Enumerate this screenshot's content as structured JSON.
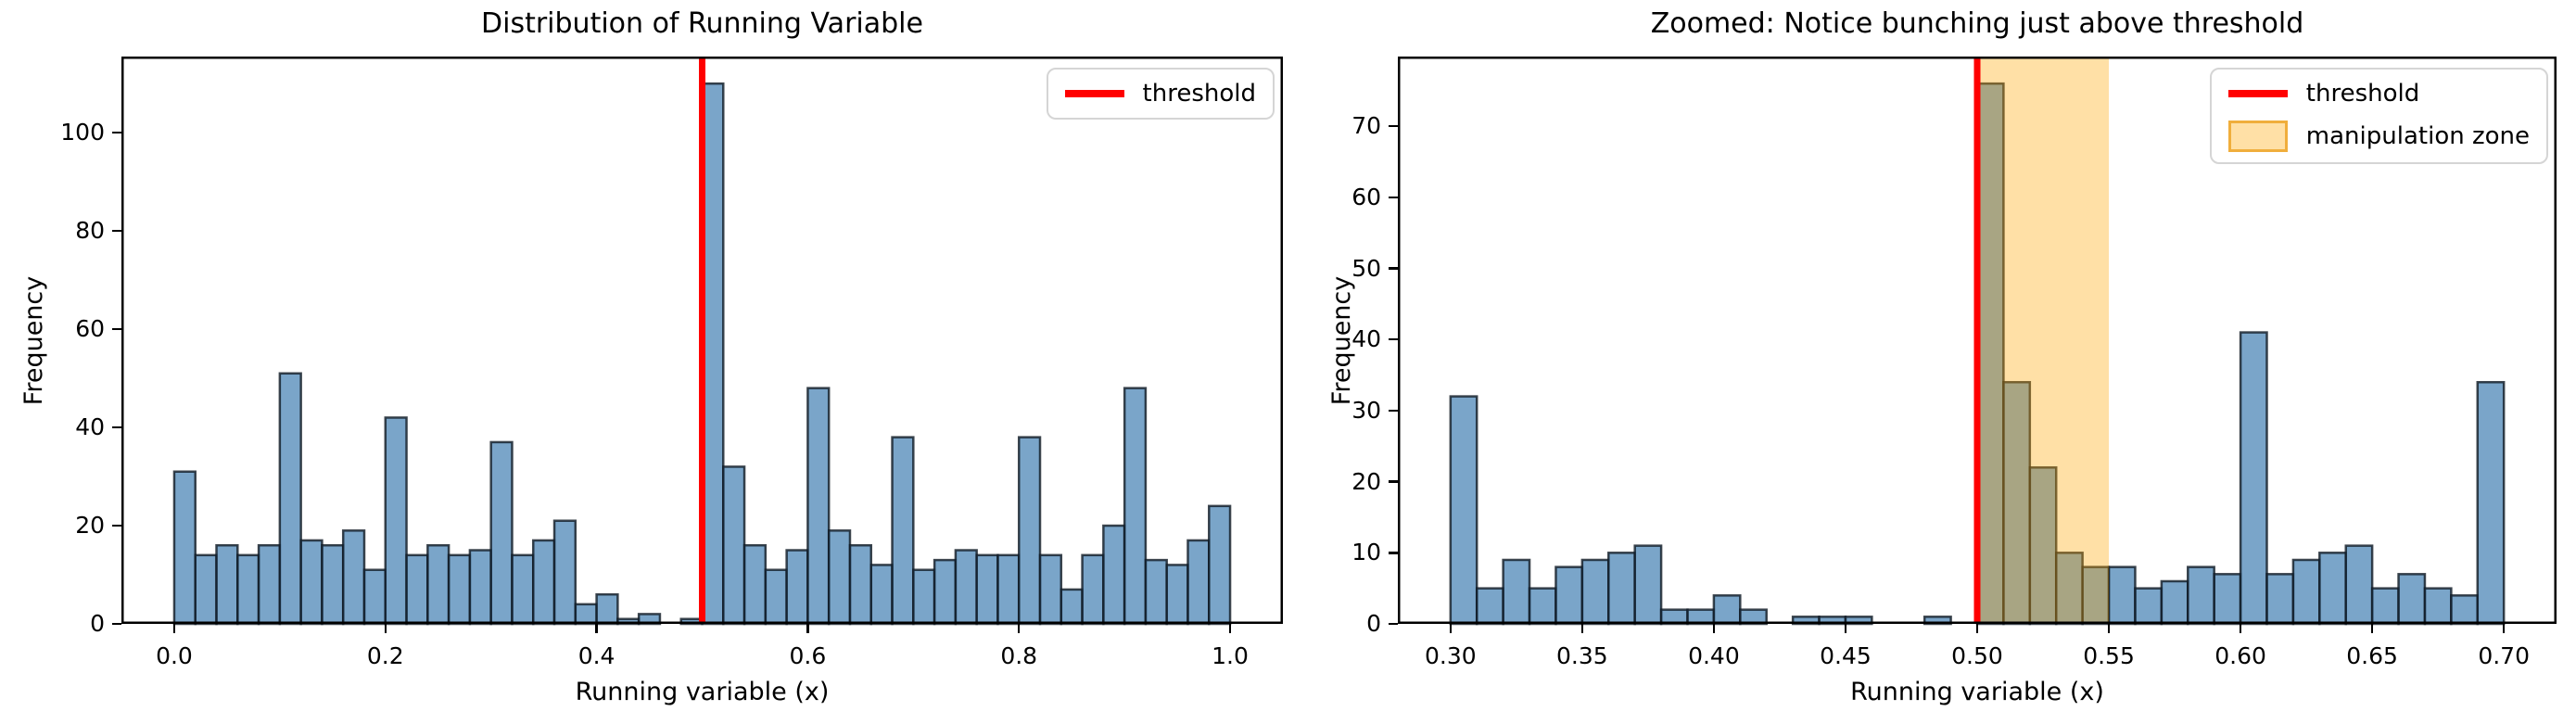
{
  "figure": {
    "background": "#ffffff"
  },
  "colors": {
    "bar_fill": "rgba(70,130,180,0.72)",
    "bar_edge": "rgba(15,25,35,0.8)",
    "threshold_line": "#ff0000",
    "manipulation_zone_fill": "rgba(255,165,0,0.35)",
    "legend_border": "#d5d5d5",
    "axis_color": "#000000"
  },
  "chart_data": [
    {
      "type": "bar",
      "kind": "histogram",
      "title": "Distribution of Running Variable",
      "xlabel": "Running variable (x)",
      "ylabel": "Frequency",
      "bin_start": 0.0,
      "bin_width": 0.02,
      "values": [
        31,
        14,
        16,
        14,
        16,
        51,
        17,
        16,
        19,
        11,
        42,
        14,
        16,
        14,
        15,
        37,
        14,
        17,
        21,
        4,
        6,
        1,
        2,
        0,
        1,
        110,
        32,
        16,
        11,
        15,
        48,
        19,
        16,
        12,
        38,
        11,
        13,
        15,
        14,
        14,
        38,
        14,
        7,
        14,
        20,
        48,
        13,
        12,
        17,
        24
      ],
      "threshold_x": 0.5,
      "xlim": [
        -0.05,
        1.05
      ],
      "ylim": [
        0,
        115.5
      ],
      "xticks": [
        0.0,
        0.2,
        0.4,
        0.6,
        0.8,
        1.0
      ],
      "xtick_labels": [
        "0.0",
        "0.2",
        "0.4",
        "0.6",
        "0.8",
        "1.0"
      ],
      "yticks": [
        0,
        20,
        40,
        60,
        80,
        100
      ],
      "ytick_labels": [
        "0",
        "20",
        "40",
        "60",
        "80",
        "100"
      ],
      "grid": false,
      "legend_position": "upper right",
      "legend_items": [
        {
          "label": "threshold",
          "swatch": "line",
          "color": "#ff0000"
        }
      ]
    },
    {
      "type": "bar",
      "kind": "histogram",
      "title": "Zoomed: Notice bunching just above threshold",
      "xlabel": "Running variable (x)",
      "ylabel": "Frequency",
      "bin_start": 0.3,
      "bin_width": 0.01,
      "values": [
        32,
        5,
        9,
        5,
        8,
        9,
        10,
        11,
        2,
        2,
        4,
        2,
        0,
        1,
        1,
        1,
        0,
        0,
        1,
        0,
        76,
        34,
        22,
        10,
        8,
        8,
        5,
        6,
        8,
        7,
        41,
        7,
        9,
        10,
        11,
        5,
        7,
        5,
        4,
        34
      ],
      "threshold_x": 0.5,
      "manipulation_zone": [
        0.5,
        0.55
      ],
      "xlim": [
        0.28,
        0.72
      ],
      "ylim": [
        0,
        79.8
      ],
      "xticks": [
        0.3,
        0.35,
        0.4,
        0.45,
        0.5,
        0.55,
        0.6,
        0.65,
        0.7
      ],
      "xtick_labels": [
        "0.30",
        "0.35",
        "0.40",
        "0.45",
        "0.50",
        "0.55",
        "0.60",
        "0.65",
        "0.70"
      ],
      "yticks": [
        0,
        10,
        20,
        30,
        40,
        50,
        60,
        70
      ],
      "ytick_labels": [
        "0",
        "10",
        "20",
        "30",
        "40",
        "50",
        "60",
        "70"
      ],
      "grid": false,
      "legend_position": "upper right",
      "legend_items": [
        {
          "label": "threshold",
          "swatch": "line",
          "color": "#ff0000"
        },
        {
          "label": "manipulation zone",
          "swatch": "patch",
          "fill": "rgba(255,165,0,0.35)",
          "border": "rgba(237,164,41,0.85)"
        }
      ]
    }
  ]
}
